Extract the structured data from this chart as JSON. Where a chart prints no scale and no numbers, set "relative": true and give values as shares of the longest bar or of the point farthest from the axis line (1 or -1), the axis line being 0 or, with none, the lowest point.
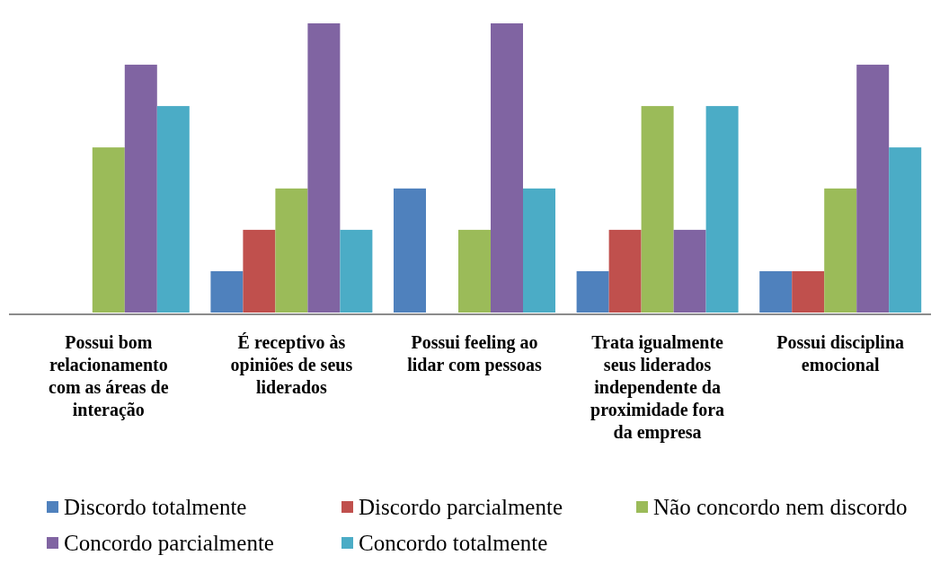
{
  "chart_data": {
    "type": "bar",
    "relative": true,
    "legend": "bottom",
    "categories": [
      "Possui bom relacionamento com as áreas de interação",
      "É receptivo às opiniões de seus liderados",
      "Possui feeling ao lidar com pessoas",
      "Trata igualmente seus liderados independente da proximidade fora da empresa",
      "Possui disciplina emocional"
    ],
    "series": [
      {
        "name": "Discordo totalmente",
        "color": "#4f81bd",
        "values": [
          0,
          0.143,
          0.429,
          0.143,
          0.143
        ]
      },
      {
        "name": "Discordo parcialmente",
        "color": "#c0504d",
        "values": [
          0,
          0.286,
          0,
          0.286,
          0.143
        ]
      },
      {
        "name": "Não concordo nem discordo",
        "color": "#9bbb59",
        "values": [
          0.571,
          0.429,
          0.286,
          0.714,
          0.429
        ]
      },
      {
        "name": "Concordo parcialmente",
        "color": "#8064a2",
        "values": [
          0.857,
          1,
          1,
          0.286,
          0.857
        ]
      },
      {
        "name": "Concordo totalmente",
        "color": "#4bacc6",
        "values": [
          0.714,
          0.286,
          0.429,
          0.714,
          0.571
        ]
      }
    ]
  }
}
